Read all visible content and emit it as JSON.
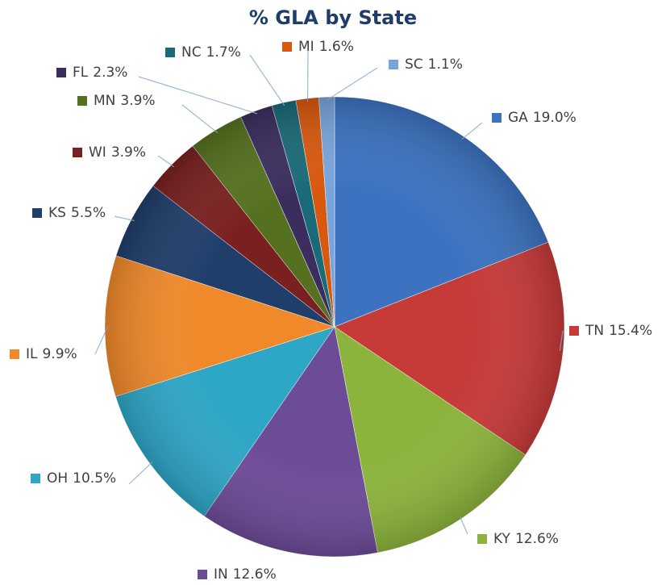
{
  "chart_data": {
    "type": "pie",
    "title": "% GLA by State",
    "categories": [
      "GA",
      "TN",
      "KY",
      "IN",
      "OH",
      "IL",
      "KS",
      "WI",
      "MN",
      "FL",
      "NC",
      "MI",
      "SC"
    ],
    "values": [
      19.0,
      15.4,
      12.6,
      12.6,
      10.5,
      9.9,
      5.5,
      3.9,
      3.9,
      2.3,
      1.7,
      1.6,
      1.1
    ],
    "value_labels": [
      "19.0%",
      "15.4%",
      "12.6%",
      "12.6%",
      "10.5%",
      "9.9%",
      "5.5%",
      "3.9%",
      "3.9%",
      "2.3%",
      "1.7%",
      "1.6%",
      "1.1%"
    ],
    "colors": [
      "#3c72c0",
      "#c63a38",
      "#8cb43c",
      "#6c4b97",
      "#2ea6c6",
      "#f0892a",
      "#1f3e6a",
      "#7a2020",
      "#55711f",
      "#3b2e5e",
      "#1b6a79",
      "#d7590e",
      "#78a4dc"
    ]
  }
}
